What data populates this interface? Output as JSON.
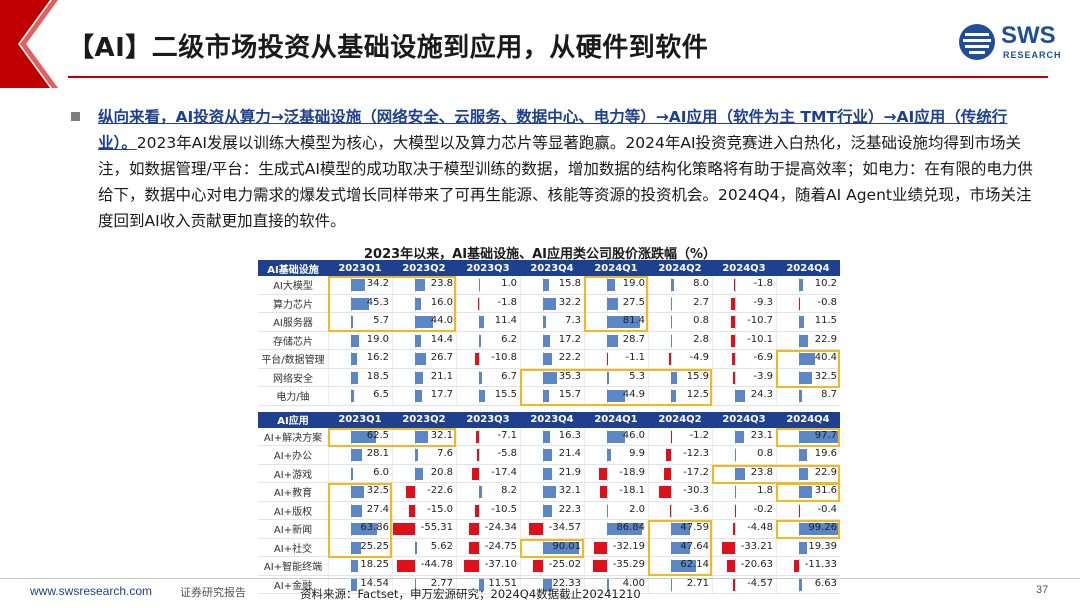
{
  "slide": {
    "title": "【AI】二级市场投资从基础设施到应用，从硬件到软件",
    "logo_text": "SWS",
    "logo_sub": "RESEARCH",
    "accent_color": "#c00000",
    "brand_color": "#1f3f8f"
  },
  "bullet": {
    "highlight": "纵向来看，AI投资从算力→泛基础设施（网络安全、云服务、数据中心、电力等）→AI应用（软件为主 TMT行业）→AI应用（传统行业）。",
    "body": "2023年AI发展以训练大模型为核心，大模型以及算力芯片等显著跑赢。2024年AI投资竞赛进入白热化，泛基础设施均得到市场关注，如数据管理/平台：生成式AI模型的成功取决于模型训练的数据，增加数据的结构化策略将有助于提高效率；如电力：在有限的电力供给下，数据中心对电力需求的爆发式增长同样带来了可再生能源、核能等资源的投资机会。2024Q4，随着AI Agent业绩兑现，市场关注度回到AI收入贡献更加直接的软件。"
  },
  "table_title": "2023年以来，AI基础设施、AI应用类公司股价涨跌幅（%）",
  "chart_data": {
    "type": "table",
    "title": "2023年以来，AI基础设施、AI应用类公司股价涨跌幅（%）",
    "quarters": [
      "2023Q1",
      "2023Q2",
      "2023Q3",
      "2023Q4",
      "2024Q1",
      "2024Q2",
      "2024Q3",
      "2024Q4"
    ],
    "sections": [
      {
        "header": "AI基础设施",
        "rows": [
          {
            "name": "AI大模型",
            "values": [
              "34.2",
              "23.8",
              "1.0",
              "15.8",
              "19.0",
              "8.0",
              "-1.8",
              "10.2"
            ]
          },
          {
            "name": "算力芯片",
            "values": [
              "45.3",
              "16.0",
              "-1.8",
              "32.2",
              "27.5",
              "2.7",
              "-9.3",
              "-0.8"
            ]
          },
          {
            "name": "AI服务器",
            "values": [
              "5.7",
              "44.0",
              "11.4",
              "7.3",
              "81.4",
              "0.8",
              "-10.7",
              "11.5"
            ]
          },
          {
            "name": "存储芯片",
            "values": [
              "19.0",
              "14.4",
              "6.2",
              "17.2",
              "28.7",
              "2.8",
              "-10.1",
              "22.9"
            ]
          },
          {
            "name": "平台/数据管理",
            "values": [
              "16.2",
              "26.7",
              "-10.8",
              "22.2",
              "-1.1",
              "-4.9",
              "-6.9",
              "40.4"
            ]
          },
          {
            "name": "网络安全",
            "values": [
              "18.5",
              "21.1",
              "6.7",
              "35.3",
              "5.3",
              "15.9",
              "-3.9",
              "32.5"
            ]
          },
          {
            "name": "电力/铀",
            "values": [
              "6.5",
              "17.7",
              "15.5",
              "15.7",
              "44.9",
              "12.5",
              "24.3",
              "8.7"
            ]
          }
        ]
      },
      {
        "header": "AI应用",
        "rows": [
          {
            "name": "AI+解决方案",
            "values": [
              "62.5",
              "32.1",
              "-7.1",
              "16.3",
              "46.0",
              "-1.2",
              "23.1",
              "97.7"
            ]
          },
          {
            "name": "AI+办公",
            "values": [
              "28.1",
              "7.6",
              "-5.8",
              "21.4",
              "9.9",
              "-12.3",
              "0.8",
              "19.6"
            ]
          },
          {
            "name": "AI+游戏",
            "values": [
              "6.0",
              "20.8",
              "-17.4",
              "21.9",
              "-18.9",
              "-17.2",
              "23.8",
              "22.9"
            ]
          },
          {
            "name": "AI+教育",
            "values": [
              "32.5",
              "-22.6",
              "8.2",
              "32.1",
              "-18.1",
              "-30.3",
              "1.8",
              "31.6"
            ]
          },
          {
            "name": "AI+版权",
            "values": [
              "27.4",
              "-15.0",
              "-10.5",
              "22.3",
              "2.0",
              "-3.6",
              "-0.2",
              "-0.4"
            ]
          },
          {
            "name": "AI+新闻",
            "values": [
              "63.86",
              "-55.31",
              "-24.34",
              "-34.57",
              "86.84",
              "47.59",
              "-4.48",
              "99.26"
            ]
          },
          {
            "name": "AI+社交",
            "values": [
              "25.25",
              "5.62",
              "-24.75",
              "90.01",
              "-32.19",
              "47.64",
              "-33.21",
              "19.39"
            ]
          },
          {
            "name": "AI+智能终端",
            "values": [
              "18.25",
              "-44.78",
              "-37.10",
              "-25.02",
              "-35.29",
              "62.14",
              "-20.63",
              "-11.33"
            ]
          },
          {
            "name": "AI+金融",
            "values": [
              "14.54",
              "2.77",
              "11.51",
              "22.33",
              "4.00",
              "2.71",
              "-4.57",
              "6.63"
            ]
          }
        ]
      }
    ],
    "highlight_color": "#f2b820",
    "positive_color": "#5b86c8",
    "negative_color": "#e0101a"
  },
  "footer": {
    "url": "www.swsresearch.com",
    "report": "证券研究报告",
    "source": "资料来源：Factset，申万宏源研究；2024Q4数据截止20241210",
    "page": "37"
  }
}
